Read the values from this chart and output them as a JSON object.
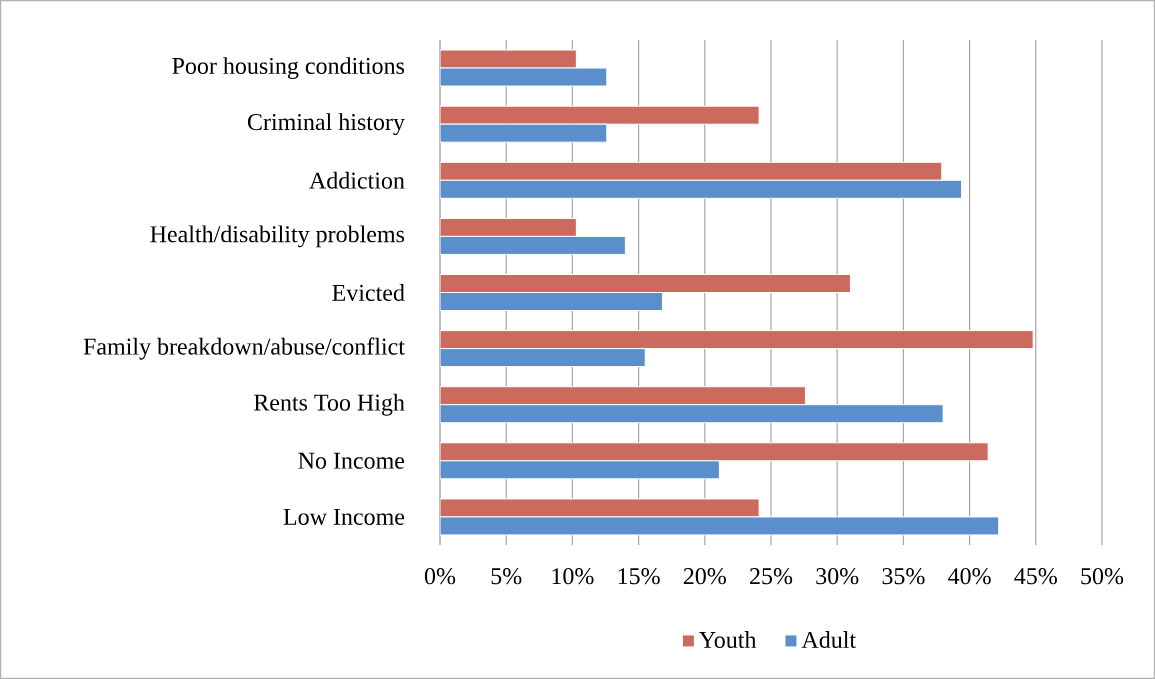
{
  "chart_data": {
    "type": "bar",
    "orientation": "horizontal",
    "categories": [
      "Poor housing conditions",
      "Criminal history",
      "Addiction",
      "Health/disability problems",
      "Evicted",
      "Family breakdown/abuse/conflict",
      "Rents Too High",
      "No Income",
      "Low Income"
    ],
    "series": [
      {
        "name": "Youth",
        "color": "#cc6a5e",
        "values": [
          10.3,
          24.1,
          37.9,
          10.3,
          31.0,
          44.8,
          27.6,
          41.4,
          24.1
        ]
      },
      {
        "name": "Adult",
        "color": "#5b8fcb",
        "values": [
          12.6,
          12.6,
          39.4,
          14.0,
          16.8,
          15.5,
          38.0,
          21.1,
          42.2
        ]
      }
    ],
    "xlim": [
      0,
      50
    ],
    "xticks": [
      {
        "value": 0,
        "label": "0%"
      },
      {
        "value": 5,
        "label": "5%"
      },
      {
        "value": 10,
        "label": "10%"
      },
      {
        "value": 15,
        "label": "15%"
      },
      {
        "value": 20,
        "label": "20%"
      },
      {
        "value": 25,
        "label": "25%"
      },
      {
        "value": 30,
        "label": "30%"
      },
      {
        "value": 35,
        "label": "35%"
      },
      {
        "value": 40,
        "label": "40%"
      },
      {
        "value": 45,
        "label": "45%"
      },
      {
        "value": 50,
        "label": "50%"
      }
    ],
    "grid": "x",
    "legend": "bottom"
  }
}
